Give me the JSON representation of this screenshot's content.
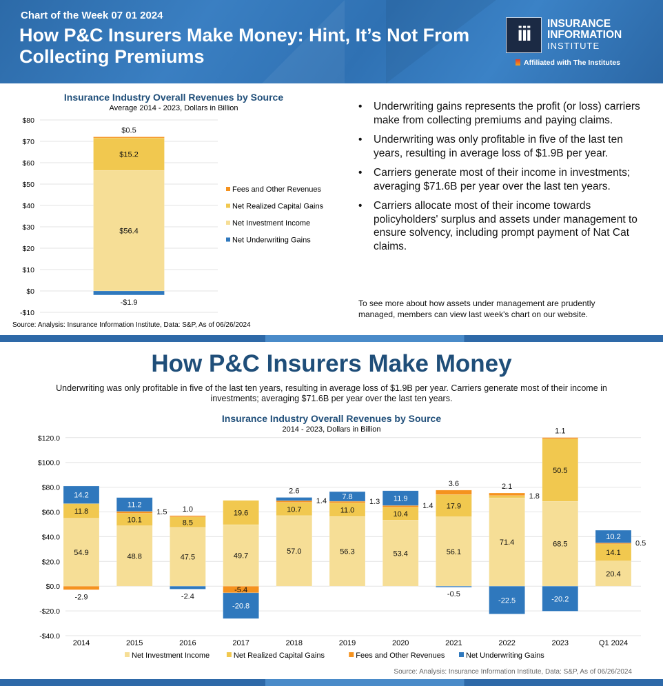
{
  "header": {
    "kicker": "Chart of the Week 07 01 2024",
    "title": "How P&C Insurers Make Money: Hint, It’s Not From Collecting Premiums",
    "logo": {
      "mark": "iii",
      "line1": "INSURANCE",
      "line2": "INFORMATION",
      "line3": "INSTITUTE",
      "affiliation": "Affiliated with The Institutes"
    }
  },
  "colors": {
    "net_investment_income": "#f6de96",
    "net_realized_capital_gains": "#f1c84f",
    "fees_and_other": "#f5921e",
    "net_underwriting_gains": "#2f78bd",
    "title_blue": "#1f4e79"
  },
  "bullets": [
    "Underwriting gains represents the profit (or loss) carriers make from collecting premiums and paying claims.",
    "Underwriting was only profitable in five of the last ten years, resulting in average loss of $1.9B per year.",
    "Carriers generate most of their income in investments; averaging $71.6B per year over the last ten years.",
    "Carriers allocate most of their income towards policyholders' surplus and assets under management to ensure solvency, including prompt payment of Nat Cat claims."
  ],
  "note": "To see more about how assets under management are prudently managed, members can view last week's chart on our website.",
  "bottom": {
    "title": "How P&C Insurers Make Money",
    "subtitle": "Underwriting was only profitable in five of the last ten years, resulting in average loss of $1.9B per year. Carriers generate most of their income in investments; averaging $71.6B per year over the last ten years."
  },
  "chart_data": [
    {
      "type": "bar",
      "stacked": true,
      "title": "Insurance Industry Overall Revenues by Source",
      "subtitle": "Average 2014 - 2023, Dollars in Billion",
      "ylim": [
        -10,
        80
      ],
      "yticks": [
        -10,
        0,
        10,
        20,
        30,
        40,
        50,
        60,
        70,
        80
      ],
      "ytick_labels": [
        "-$10",
        "$0",
        "$10",
        "$20",
        "$30",
        "$40",
        "$50",
        "$60",
        "$70",
        "$80"
      ],
      "categories": [
        "Average 2014-2023"
      ],
      "series": [
        {
          "name": "Net Investment Income",
          "values": [
            56.4
          ],
          "labels": [
            "$56.4"
          ]
        },
        {
          "name": "Net Realized Capital Gains",
          "values": [
            15.2
          ],
          "labels": [
            "$15.2"
          ]
        },
        {
          "name": "Fees and Other Revenues",
          "values": [
            0.5
          ],
          "labels": [
            "$0.5"
          ]
        },
        {
          "name": "Net Underwriting Gains",
          "values": [
            -1.9
          ],
          "labels": [
            "-$1.9"
          ]
        }
      ],
      "legend_order": [
        "Fees and Other Revenues",
        "Net Realized Capital Gains",
        "Net Investment Income",
        "Net Underwriting Gains"
      ],
      "legend_position": "right",
      "source": "Source: Analysis: Insurance Information Institute, Data: S&P, As of 06/26/2024"
    },
    {
      "type": "bar",
      "stacked": true,
      "title": "Insurance Industry Overall Revenues by Source",
      "subtitle": "2014 - 2023, Dollars in Billion",
      "ylim": [
        -40,
        120
      ],
      "yticks": [
        -40,
        -20,
        0,
        20,
        40,
        60,
        80,
        100,
        120
      ],
      "ytick_labels": [
        "-$40.0",
        "-$20.0",
        "$0.0",
        "$20.0",
        "$40.0",
        "$60.0",
        "$80.0",
        "$100.0",
        "$120.0"
      ],
      "categories": [
        "2014",
        "2015",
        "2016",
        "2017",
        "2018",
        "2019",
        "2020",
        "2021",
        "2022",
        "2023",
        "Q1 2024"
      ],
      "series": [
        {
          "name": "Net Investment Income",
          "values": [
            54.9,
            48.8,
            47.5,
            49.7,
            57.0,
            56.3,
            53.4,
            56.1,
            71.4,
            68.5,
            20.4
          ]
        },
        {
          "name": "Net Realized Capital Gains",
          "values": [
            11.8,
            10.1,
            8.5,
            19.6,
            10.7,
            11.0,
            10.4,
            17.9,
            1.8,
            50.5,
            14.1
          ]
        },
        {
          "name": "Fees and Other Revenues",
          "values": [
            -2.9,
            1.5,
            1.0,
            -5.4,
            1.4,
            1.3,
            1.4,
            3.6,
            2.1,
            1.1,
            0.5
          ]
        },
        {
          "name": "Net Underwriting Gains",
          "values": [
            14.2,
            11.2,
            -2.4,
            -20.8,
            2.6,
            7.8,
            11.9,
            -0.5,
            -22.5,
            -20.2,
            10.2
          ]
        }
      ],
      "legend_position": "bottom",
      "source": "Source: Analysis: Insurance Information Institute, Data: S&P, As of 06/26/2024"
    }
  ]
}
